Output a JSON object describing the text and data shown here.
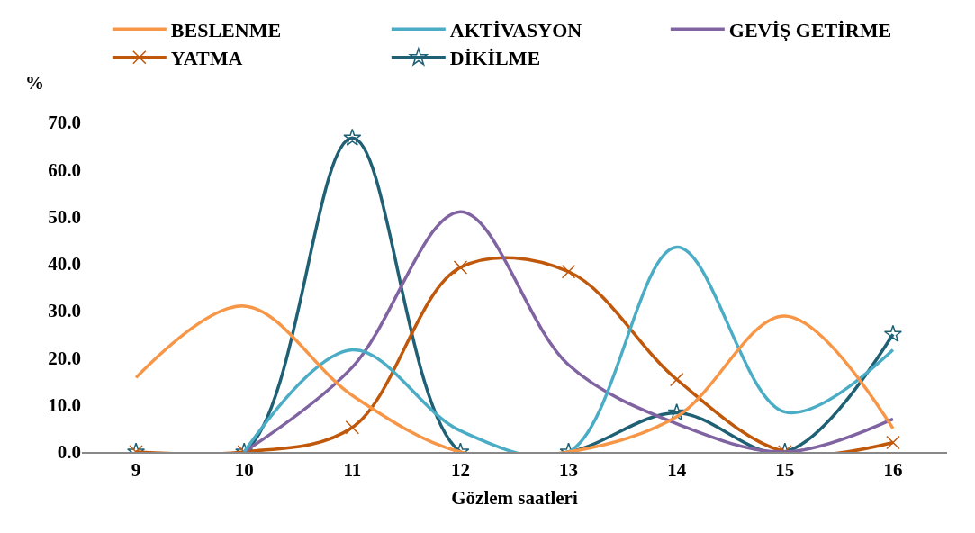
{
  "chart_data": {
    "type": "line",
    "ylabel": "%",
    "xlabel": "Gözlem saatleri",
    "x": [
      9,
      10,
      11,
      12,
      13,
      14,
      15,
      16
    ],
    "xlim": [
      8.5,
      16.5
    ],
    "xticks": [
      9,
      10,
      11,
      12,
      13,
      14,
      15,
      16
    ],
    "ylim": [
      0,
      70
    ],
    "yticks": [
      {
        "value": 0,
        "label": "0.0"
      },
      {
        "value": 10,
        "label": "10.0"
      },
      {
        "value": 20,
        "label": "20.0"
      },
      {
        "value": 30,
        "label": "30.0"
      },
      {
        "value": 40,
        "label": "40.0"
      },
      {
        "value": 50,
        "label": "50.0"
      },
      {
        "value": 60,
        "label": "60.0"
      },
      {
        "value": 70,
        "label": "70.0"
      }
    ],
    "grid": false,
    "legend": "top",
    "series": [
      {
        "name": "BESLENME",
        "color": "#f79646",
        "marker": "none",
        "values": [
          15.8,
          31,
          12,
          0,
          0,
          7.5,
          28.9,
          5
        ]
      },
      {
        "name": "AKTİVASYON",
        "color": "#4bacc6",
        "marker": "none",
        "values": [
          null,
          0,
          21.7,
          4.5,
          0,
          43.5,
          8.5,
          21.7
        ]
      },
      {
        "name": "GEVİŞ GETİRME",
        "color": "#8064a2",
        "marker": "none",
        "values": [
          null,
          0,
          18,
          51,
          18.5,
          6,
          0,
          7
        ]
      },
      {
        "name": "YATMA",
        "color": "#c0580b",
        "marker": "cross",
        "values": [
          0,
          0,
          5.2,
          39.2,
          38.3,
          15.4,
          0,
          2
        ]
      },
      {
        "name": "DİKİLME",
        "color": "#1f6075",
        "marker": "star",
        "values": [
          0,
          0,
          66.7,
          0,
          0,
          8.3,
          0,
          25
        ]
      }
    ]
  }
}
